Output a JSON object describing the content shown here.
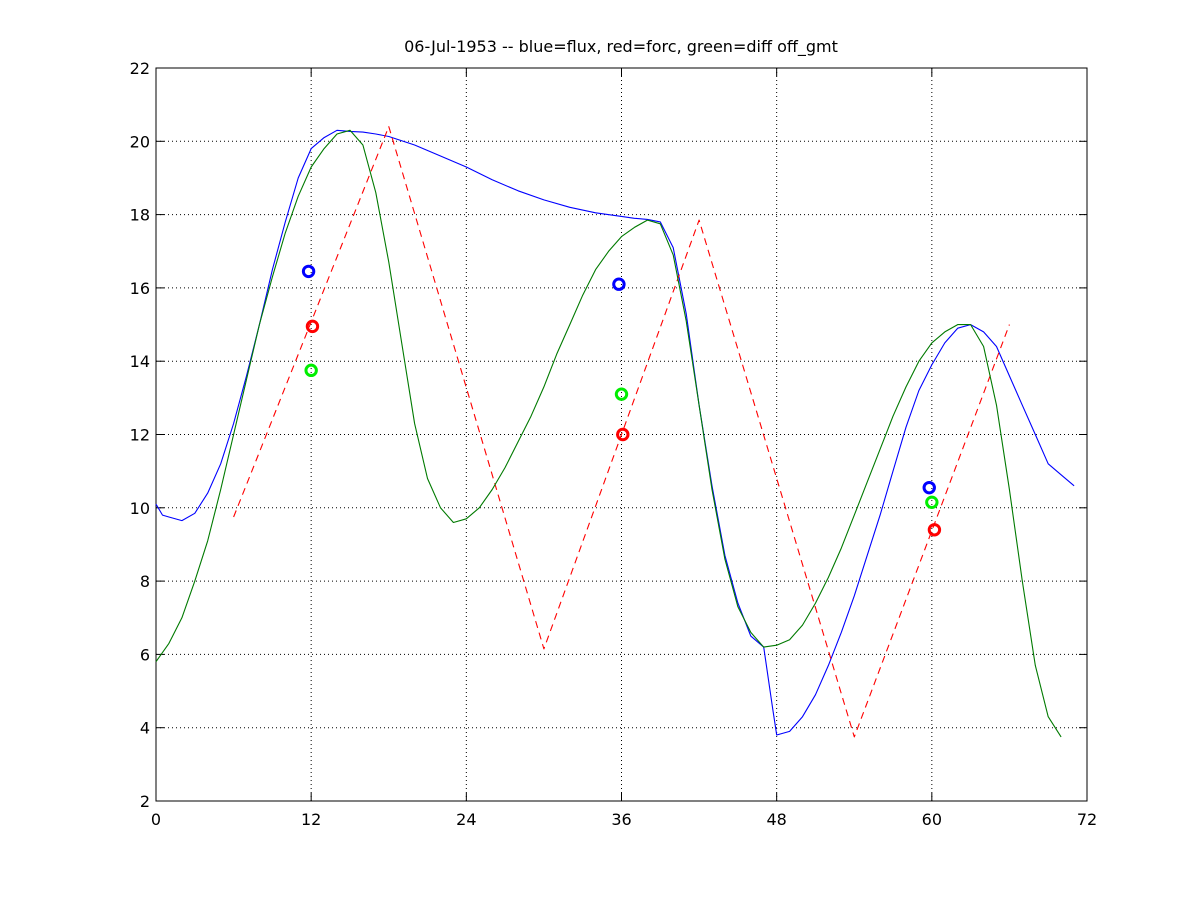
{
  "chart_data": {
    "type": "line",
    "title": "06-Jul-1953 -- blue=flux, red=forc, green=diff off_gmt",
    "xlabel": "",
    "ylabel": "",
    "xlim": [
      0,
      72
    ],
    "ylim": [
      2,
      22
    ],
    "xticks": [
      0,
      12,
      24,
      36,
      48,
      60,
      72
    ],
    "yticks": [
      2,
      4,
      6,
      8,
      10,
      12,
      14,
      16,
      18,
      20,
      22
    ],
    "grid": true,
    "series": [
      {
        "name": "flux",
        "color": "#0000ff",
        "style": "solid",
        "points": [
          [
            0,
            10.1
          ],
          [
            0.5,
            9.8
          ],
          [
            1,
            9.75
          ],
          [
            2,
            9.65
          ],
          [
            3,
            9.85
          ],
          [
            4,
            10.4
          ],
          [
            5,
            11.2
          ],
          [
            6,
            12.3
          ],
          [
            7,
            13.6
          ],
          [
            8,
            15.0
          ],
          [
            9,
            16.5
          ],
          [
            10,
            17.8
          ],
          [
            11,
            19.0
          ],
          [
            12,
            19.8
          ],
          [
            13,
            20.1
          ],
          [
            14,
            20.3
          ],
          [
            15,
            20.27
          ],
          [
            16,
            20.25
          ],
          [
            17,
            20.2
          ],
          [
            18,
            20.13
          ],
          [
            20,
            19.9
          ],
          [
            22,
            19.6
          ],
          [
            24,
            19.3
          ],
          [
            26,
            18.95
          ],
          [
            28,
            18.65
          ],
          [
            30,
            18.4
          ],
          [
            32,
            18.2
          ],
          [
            34,
            18.05
          ],
          [
            36,
            17.95
          ],
          [
            37,
            17.9
          ],
          [
            38,
            17.87
          ],
          [
            39,
            17.8
          ],
          [
            40,
            17.1
          ],
          [
            41,
            15.3
          ],
          [
            42,
            12.8
          ],
          [
            43,
            10.6
          ],
          [
            44,
            8.7
          ],
          [
            45,
            7.4
          ],
          [
            46,
            6.5
          ],
          [
            47,
            6.2
          ],
          [
            47.7,
            4.5
          ],
          [
            48,
            3.8
          ],
          [
            49,
            3.9
          ],
          [
            50,
            4.3
          ],
          [
            51,
            4.9
          ],
          [
            52,
            5.7
          ],
          [
            53,
            6.6
          ],
          [
            54,
            7.6
          ],
          [
            55,
            8.7
          ],
          [
            56,
            9.8
          ],
          [
            57,
            11.0
          ],
          [
            58,
            12.2
          ],
          [
            59,
            13.2
          ],
          [
            60,
            13.9
          ],
          [
            61,
            14.5
          ],
          [
            62,
            14.9
          ],
          [
            63,
            15.0
          ],
          [
            64,
            14.8
          ],
          [
            65,
            14.4
          ],
          [
            66,
            13.6
          ],
          [
            67,
            12.8
          ],
          [
            68,
            12.0
          ],
          [
            69,
            11.2
          ],
          [
            70,
            10.9
          ],
          [
            71,
            10.6
          ]
        ]
      },
      {
        "name": "forc",
        "color": "#ff0000",
        "style": "dashed",
        "points": [
          [
            6,
            9.75
          ],
          [
            18,
            20.4
          ],
          [
            30,
            6.15
          ],
          [
            42,
            17.85
          ],
          [
            54,
            3.75
          ],
          [
            66,
            15.0
          ]
        ]
      },
      {
        "name": "diff",
        "color": "#007a00",
        "style": "solid",
        "points": [
          [
            0,
            5.8
          ],
          [
            1,
            6.3
          ],
          [
            2,
            7.0
          ],
          [
            3,
            8.0
          ],
          [
            4,
            9.1
          ],
          [
            5,
            10.5
          ],
          [
            6,
            12.0
          ],
          [
            7,
            13.5
          ],
          [
            8,
            15.0
          ],
          [
            9,
            16.3
          ],
          [
            10,
            17.5
          ],
          [
            11,
            18.5
          ],
          [
            12,
            19.3
          ],
          [
            13,
            19.8
          ],
          [
            14,
            20.2
          ],
          [
            15,
            20.3
          ],
          [
            16,
            19.9
          ],
          [
            17,
            18.6
          ],
          [
            18,
            16.7
          ],
          [
            19,
            14.5
          ],
          [
            20,
            12.3
          ],
          [
            21,
            10.8
          ],
          [
            22,
            10.0
          ],
          [
            23,
            9.6
          ],
          [
            24,
            9.7
          ],
          [
            25,
            10.0
          ],
          [
            26,
            10.5
          ],
          [
            27,
            11.1
          ],
          [
            28,
            11.8
          ],
          [
            29,
            12.5
          ],
          [
            30,
            13.3
          ],
          [
            31,
            14.2
          ],
          [
            32,
            15.0
          ],
          [
            33,
            15.8
          ],
          [
            34,
            16.5
          ],
          [
            35,
            17.0
          ],
          [
            36,
            17.4
          ],
          [
            37,
            17.65
          ],
          [
            38,
            17.85
          ],
          [
            39,
            17.75
          ],
          [
            40,
            16.9
          ],
          [
            41,
            15.1
          ],
          [
            42,
            12.8
          ],
          [
            43,
            10.5
          ],
          [
            44,
            8.6
          ],
          [
            45,
            7.3
          ],
          [
            46,
            6.6
          ],
          [
            47,
            6.2
          ],
          [
            48,
            6.25
          ],
          [
            49,
            6.4
          ],
          [
            50,
            6.8
          ],
          [
            51,
            7.4
          ],
          [
            52,
            8.1
          ],
          [
            53,
            8.9
          ],
          [
            54,
            9.8
          ],
          [
            55,
            10.7
          ],
          [
            56,
            11.6
          ],
          [
            57,
            12.5
          ],
          [
            58,
            13.3
          ],
          [
            59,
            14.0
          ],
          [
            60,
            14.5
          ],
          [
            61,
            14.8
          ],
          [
            62,
            15.0
          ],
          [
            63,
            15.0
          ],
          [
            64,
            14.4
          ],
          [
            65,
            12.8
          ],
          [
            66,
            10.5
          ],
          [
            67,
            8.0
          ],
          [
            68,
            5.7
          ],
          [
            69,
            4.3
          ],
          [
            70,
            3.75
          ]
        ]
      }
    ],
    "markers": [
      {
        "name": "flux-marker-1",
        "color": "#0000ff",
        "x": 11.8,
        "y": 16.45
      },
      {
        "name": "forc-marker-1",
        "color": "#ff0000",
        "x": 12.1,
        "y": 14.95
      },
      {
        "name": "diff-marker-1",
        "color": "#00ee00",
        "x": 12.0,
        "y": 13.75
      },
      {
        "name": "flux-marker-2",
        "color": "#0000ff",
        "x": 35.8,
        "y": 16.1
      },
      {
        "name": "diff-marker-2",
        "color": "#00ee00",
        "x": 36.0,
        "y": 13.1
      },
      {
        "name": "forc-marker-2",
        "color": "#ff0000",
        "x": 36.1,
        "y": 12.0
      },
      {
        "name": "flux-marker-3",
        "color": "#0000ff",
        "x": 59.8,
        "y": 10.55
      },
      {
        "name": "diff-marker-3",
        "color": "#00ee00",
        "x": 60.0,
        "y": 10.15
      },
      {
        "name": "forc-marker-3",
        "color": "#ff0000",
        "x": 60.2,
        "y": 9.4
      }
    ]
  }
}
